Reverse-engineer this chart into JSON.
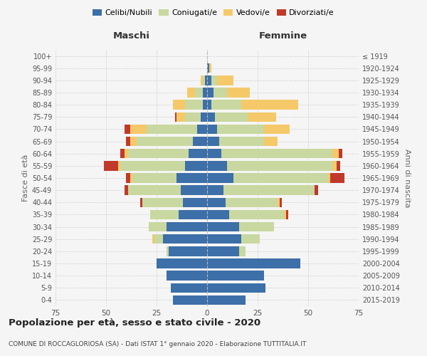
{
  "age_groups": [
    "0-4",
    "5-9",
    "10-14",
    "15-19",
    "20-24",
    "25-29",
    "30-34",
    "35-39",
    "40-44",
    "45-49",
    "50-54",
    "55-59",
    "60-64",
    "65-69",
    "70-74",
    "75-79",
    "80-84",
    "85-89",
    "90-94",
    "95-99",
    "100+"
  ],
  "birth_years": [
    "2015-2019",
    "2010-2014",
    "2005-2009",
    "2000-2004",
    "1995-1999",
    "1990-1994",
    "1985-1989",
    "1980-1984",
    "1975-1979",
    "1970-1974",
    "1965-1969",
    "1960-1964",
    "1955-1959",
    "1950-1954",
    "1945-1949",
    "1940-1944",
    "1935-1939",
    "1930-1934",
    "1925-1929",
    "1920-1924",
    "≤ 1919"
  ],
  "male_celibi": [
    17,
    18,
    20,
    25,
    19,
    22,
    20,
    14,
    12,
    13,
    15,
    11,
    9,
    7,
    5,
    3,
    2,
    2,
    1,
    0,
    0
  ],
  "male_coniugati": [
    0,
    0,
    0,
    0,
    1,
    4,
    9,
    14,
    20,
    26,
    22,
    32,
    30,
    28,
    25,
    8,
    9,
    4,
    1,
    0,
    0
  ],
  "male_vedovi": [
    0,
    0,
    0,
    0,
    0,
    1,
    0,
    0,
    0,
    0,
    1,
    1,
    2,
    3,
    8,
    4,
    6,
    4,
    1,
    0,
    0
  ],
  "male_divorziati": [
    0,
    0,
    0,
    0,
    0,
    0,
    0,
    0,
    1,
    2,
    2,
    7,
    2,
    2,
    3,
    1,
    0,
    0,
    0,
    0,
    0
  ],
  "female_celibi": [
    19,
    29,
    28,
    46,
    16,
    17,
    16,
    11,
    9,
    8,
    13,
    10,
    7,
    6,
    5,
    4,
    2,
    3,
    2,
    1,
    0
  ],
  "female_coniugati": [
    0,
    0,
    0,
    0,
    3,
    9,
    17,
    27,
    26,
    45,
    47,
    52,
    55,
    22,
    23,
    16,
    15,
    7,
    3,
    0,
    0
  ],
  "female_vedovi": [
    0,
    0,
    0,
    0,
    0,
    0,
    0,
    1,
    1,
    0,
    1,
    2,
    3,
    7,
    13,
    14,
    28,
    11,
    8,
    1,
    0
  ],
  "female_divorziati": [
    0,
    0,
    0,
    0,
    0,
    0,
    0,
    1,
    1,
    2,
    7,
    2,
    2,
    0,
    0,
    0,
    0,
    0,
    0,
    0,
    0
  ],
  "color_celibi": "#3d6fa8",
  "color_coniugati": "#c8d8a0",
  "color_vedovi": "#f5c96a",
  "color_divorziati": "#c0392b",
  "title": "Popolazione per età, sesso e stato civile - 2020",
  "subtitle": "COMUNE DI ROCCAGLORIOSA (SA) - Dati ISTAT 1° gennaio 2020 - Elaborazione TUTTITALIA.IT",
  "xlabel_left": "Maschi",
  "xlabel_right": "Femmine",
  "ylabel_left": "Fasce di età",
  "ylabel_right": "Anni di nascita",
  "xlim": 75,
  "bg_color": "#f5f5f5",
  "grid_color": "#cccccc"
}
